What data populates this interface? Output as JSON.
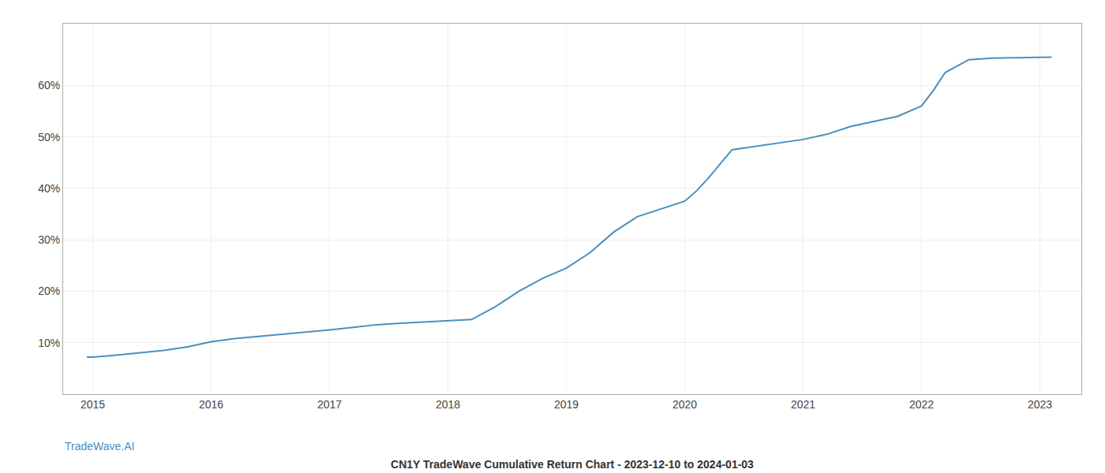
{
  "chart_data": {
    "type": "line",
    "title": "CN1Y TradeWave Cumulative Return Chart - 2023-12-10 to 2024-01-03",
    "annotations": [
      "TradeWave.AI"
    ],
    "color": "#4a8fbf",
    "x": [
      2014.95,
      2015.0,
      2015.2,
      2015.4,
      2015.6,
      2015.8,
      2016.0,
      2016.2,
      2016.4,
      2016.6,
      2016.8,
      2017.0,
      2017.2,
      2017.4,
      2017.6,
      2017.8,
      2018.0,
      2018.1,
      2018.2,
      2018.4,
      2018.6,
      2018.8,
      2019.0,
      2019.2,
      2019.4,
      2019.6,
      2019.8,
      2020.0,
      2020.1,
      2020.2,
      2020.4,
      2020.6,
      2020.8,
      2021.0,
      2021.2,
      2021.4,
      2021.6,
      2021.8,
      2022.0,
      2022.1,
      2022.2,
      2022.4,
      2022.6,
      2022.8,
      2023.0,
      2023.1
    ],
    "values": [
      7.2,
      7.2,
      7.6,
      8.0,
      8.5,
      9.2,
      10.2,
      10.8,
      11.2,
      11.6,
      12.0,
      12.5,
      13.0,
      13.5,
      13.8,
      14.0,
      14.2,
      14.3,
      14.5,
      17.0,
      20.0,
      22.5,
      24.5,
      27.5,
      31.5,
      34.5,
      36.0,
      37.5,
      39.5,
      42.0,
      47.5,
      48.2,
      48.8,
      49.5,
      50.5,
      52.0,
      53.0,
      54.0,
      56.0,
      59.0,
      62.5,
      65.0,
      65.3,
      65.4,
      65.5,
      65.5
    ],
    "xlim": [
      2014.75,
      2023.35
    ],
    "ylim": [
      0,
      72
    ],
    "xticks": [
      2015,
      2016,
      2017,
      2018,
      2019,
      2020,
      2021,
      2022,
      2023
    ],
    "yticks": [
      {
        "value": 10,
        "label": "10%"
      },
      {
        "value": 20,
        "label": "20%"
      },
      {
        "value": 30,
        "label": "30%"
      },
      {
        "value": 40,
        "label": "40%"
      },
      {
        "value": 50,
        "label": "50%"
      },
      {
        "value": 60,
        "label": "60%"
      }
    ],
    "grid": true
  }
}
